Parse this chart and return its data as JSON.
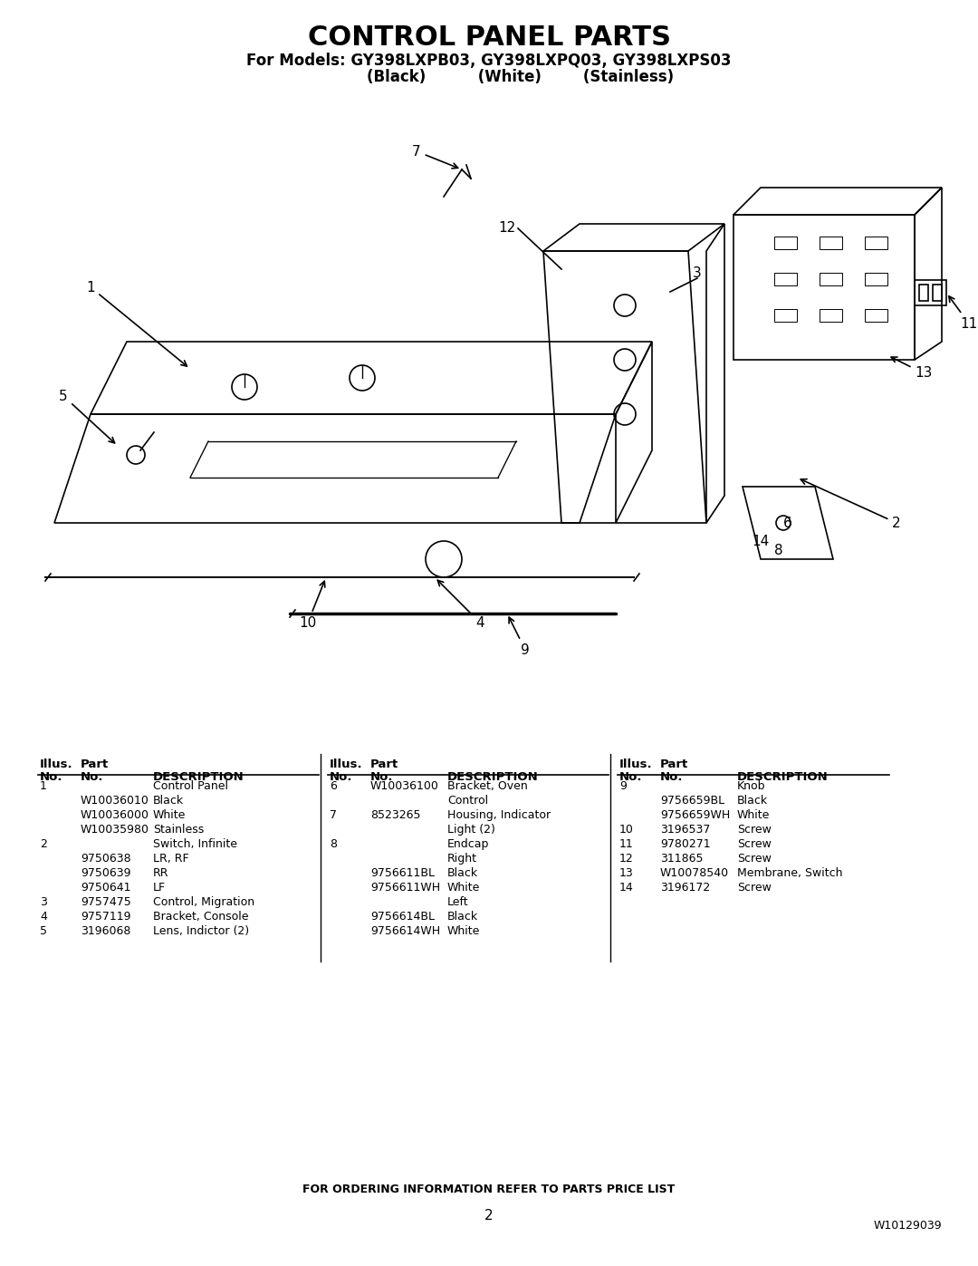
{
  "title": "CONTROL PANEL PARTS",
  "subtitle_line1": "For Models: GY398LXPB03, GY398LXPQ03, GY398LXPS03",
  "subtitle_line2": "            (Black)          (White)        (Stainless)",
  "footer_center": "FOR ORDERING INFORMATION REFER TO PARTS PRICE LIST",
  "footer_page": "2",
  "footer_right": "W10129039",
  "bg_color": "#ffffff",
  "table_col1": [
    [
      "Illus.",
      "Part",
      ""
    ],
    [
      "No.",
      "No.",
      "DESCRIPTION"
    ],
    [
      "1",
      "",
      "Control Panel"
    ],
    [
      "",
      "W10036010",
      "Black"
    ],
    [
      "",
      "W10036000",
      "White"
    ],
    [
      "",
      "W10035980",
      "Stainless"
    ],
    [
      "2",
      "",
      "Switch, Infinite"
    ],
    [
      "",
      "9750638",
      "LR, RF"
    ],
    [
      "",
      "9750639",
      "RR"
    ],
    [
      "",
      "9750641",
      "LF"
    ],
    [
      "3",
      "9757475",
      "Control, Migration"
    ],
    [
      "4",
      "9757119",
      "Bracket, Console"
    ],
    [
      "5",
      "3196068",
      "Lens, Indictor (2)"
    ]
  ],
  "table_col2": [
    [
      "Illus.",
      "Part",
      ""
    ],
    [
      "No.",
      "No.",
      "DESCRIPTION"
    ],
    [
      "6",
      "W10036100",
      "Bracket, Oven"
    ],
    [
      "",
      "",
      "Control"
    ],
    [
      "7",
      "8523265",
      "Housing, Indicator"
    ],
    [
      "",
      "",
      "Light (2)"
    ],
    [
      "8",
      "",
      "Endcap"
    ],
    [
      "",
      "",
      "Right"
    ],
    [
      "",
      "9756611BL",
      "Black"
    ],
    [
      "",
      "9756611WH",
      "White"
    ],
    [
      "",
      "",
      "Left"
    ],
    [
      "",
      "9756614BL",
      "Black"
    ],
    [
      "",
      "9756614WH",
      "White"
    ]
  ],
  "table_col3": [
    [
      "Illus.",
      "Part",
      ""
    ],
    [
      "No.",
      "No.",
      "DESCRIPTION"
    ],
    [
      "9",
      "",
      "Knob"
    ],
    [
      "",
      "9756659BL",
      "Black"
    ],
    [
      "",
      "9756659WH",
      "White"
    ],
    [
      "10",
      "3196537",
      "Screw"
    ],
    [
      "11",
      "9780271",
      "Screw"
    ],
    [
      "12",
      "311865",
      "Screw"
    ],
    [
      "13",
      "W10078540",
      "Membrane, Switch"
    ],
    [
      "14",
      "3196172",
      "Screw"
    ]
  ]
}
